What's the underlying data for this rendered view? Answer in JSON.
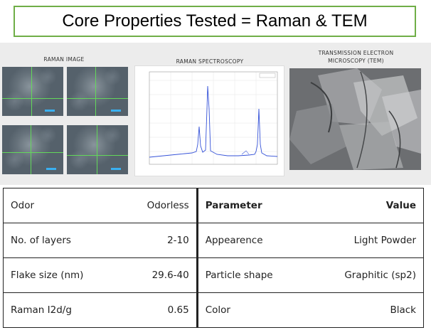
{
  "header": {
    "title": "Core Properties Tested = Raman & TEM"
  },
  "panels": {
    "raman_image_caption": "RAMAN IMAGE",
    "raman_spectroscopy_caption": "RAMAN SPECTROSCOPY",
    "tem_caption_line1": "TRANSMISSION ELECTRON",
    "tem_caption_line2": "MICROSCOPY (TEM)"
  },
  "table": {
    "left": [
      {
        "key": "Odor",
        "value": "Odorless"
      },
      {
        "key": "No. of layers",
        "value": "2-10"
      },
      {
        "key": "Flake size (nm)",
        "value": "29.6-40"
      },
      {
        "key": "Raman I2d/g",
        "value": "0.65"
      }
    ],
    "right_header": {
      "key": "Parameter",
      "value": "Value"
    },
    "right": [
      {
        "key": "Appearence",
        "value": "Light Powder"
      },
      {
        "key": "Particle shape",
        "value": "Graphitic (sp2)"
      },
      {
        "key": "Color",
        "value": "Black"
      }
    ]
  },
  "colors": {
    "title_border": "#6fae47",
    "crosshair": "#63d85a",
    "spectrum": "#3552d8"
  }
}
